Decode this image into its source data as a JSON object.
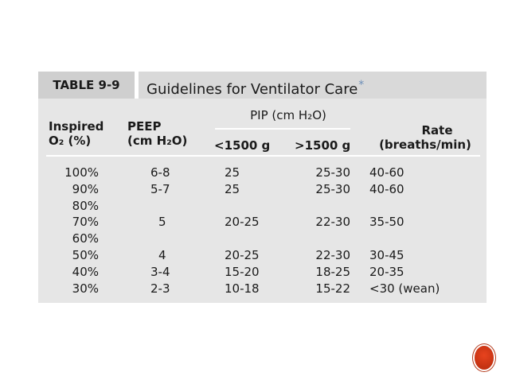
{
  "table": {
    "label": "TABLE 9-9",
    "title": "Guidelines for Ventilator Care",
    "title_mark": "*",
    "headers": {
      "inspired_line1": "Inspired",
      "inspired_line2": "O₂ (%)",
      "peep_line1": "PEEP",
      "peep_line2": "(cm H₂O)",
      "pip_title": "PIP (cm H₂O)",
      "pip_under": "<1500 g",
      "pip_over": ">1500 g",
      "rate_line1": "Rate",
      "rate_line2": "(breaths/min)"
    },
    "rows": [
      {
        "o2": "100%",
        "peep": "6-8",
        "pip_under": "25",
        "pip_over": "25-30",
        "rate": "40-60"
      },
      {
        "o2": "90%",
        "peep": "5-7",
        "pip_under": "25",
        "pip_over": "25-30",
        "rate": "40-60"
      },
      {
        "o2": "80%",
        "peep": "",
        "pip_under": "",
        "pip_over": "",
        "rate": ""
      },
      {
        "o2": "70%",
        "peep": "5",
        "pip_under": "20-25",
        "pip_over": "22-30",
        "rate": "35-50"
      },
      {
        "o2": "60%",
        "peep": "",
        "pip_under": "",
        "pip_over": "",
        "rate": ""
      },
      {
        "o2": "50%",
        "peep": "4",
        "pip_under": "20-25",
        "pip_over": "22-30",
        "rate": "30-45"
      },
      {
        "o2": "40%",
        "peep": "3-4",
        "pip_under": "15-20",
        "pip_over": "18-25",
        "rate": "20-35"
      },
      {
        "o2": "30%",
        "peep": "2-3",
        "pip_under": "10-18",
        "pip_over": "15-22",
        "rate": "<30 (wean)"
      }
    ]
  },
  "colors": {
    "table_bg": "#e6e6e6",
    "label_bg": "#cfcfcf",
    "badge": "#d63a17"
  }
}
